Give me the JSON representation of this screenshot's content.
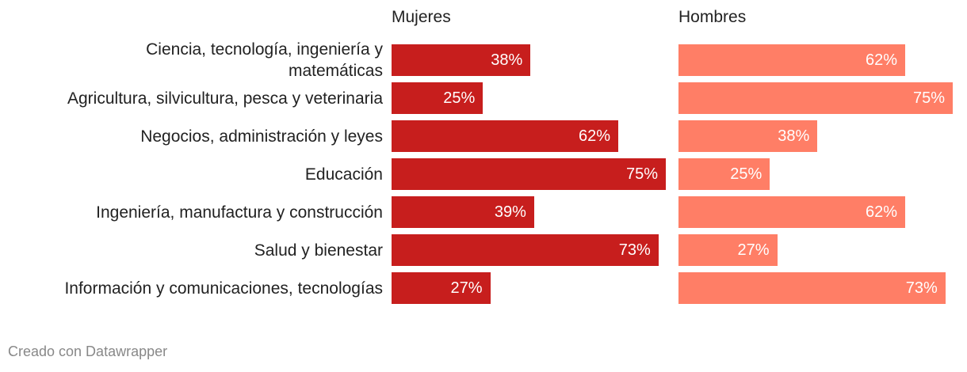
{
  "chart_data": {
    "type": "bar",
    "categories": [
      "Ciencia, tecnología, ingeniería y\nmatemáticas",
      "Agricultura, silvicultura, pesca y veterinaria",
      "Negocios, administración y leyes",
      "Educación",
      "Ingeniería, manufactura y construcción",
      "Salud y bienestar",
      "Información y comunicaciones, tecnologías"
    ],
    "series": [
      {
        "name": "Mujeres",
        "values": [
          38,
          25,
          62,
          75,
          39,
          73,
          27
        ],
        "labels": [
          "38%",
          "25%",
          "62%",
          "75%",
          "39%",
          "73%",
          "27%"
        ],
        "color": "#c71e1d"
      },
      {
        "name": "Hombres",
        "values": [
          62,
          75,
          38,
          25,
          62,
          27,
          73
        ],
        "labels": [
          "62%",
          "75%",
          "38%",
          "25%",
          "62%",
          "27%",
          "73%"
        ],
        "color": "#ff7e66"
      }
    ],
    "xlim": [
      0,
      75
    ],
    "grid": false,
    "legend": "none"
  },
  "footer": {
    "credit": "Creado con Datawrapper"
  }
}
